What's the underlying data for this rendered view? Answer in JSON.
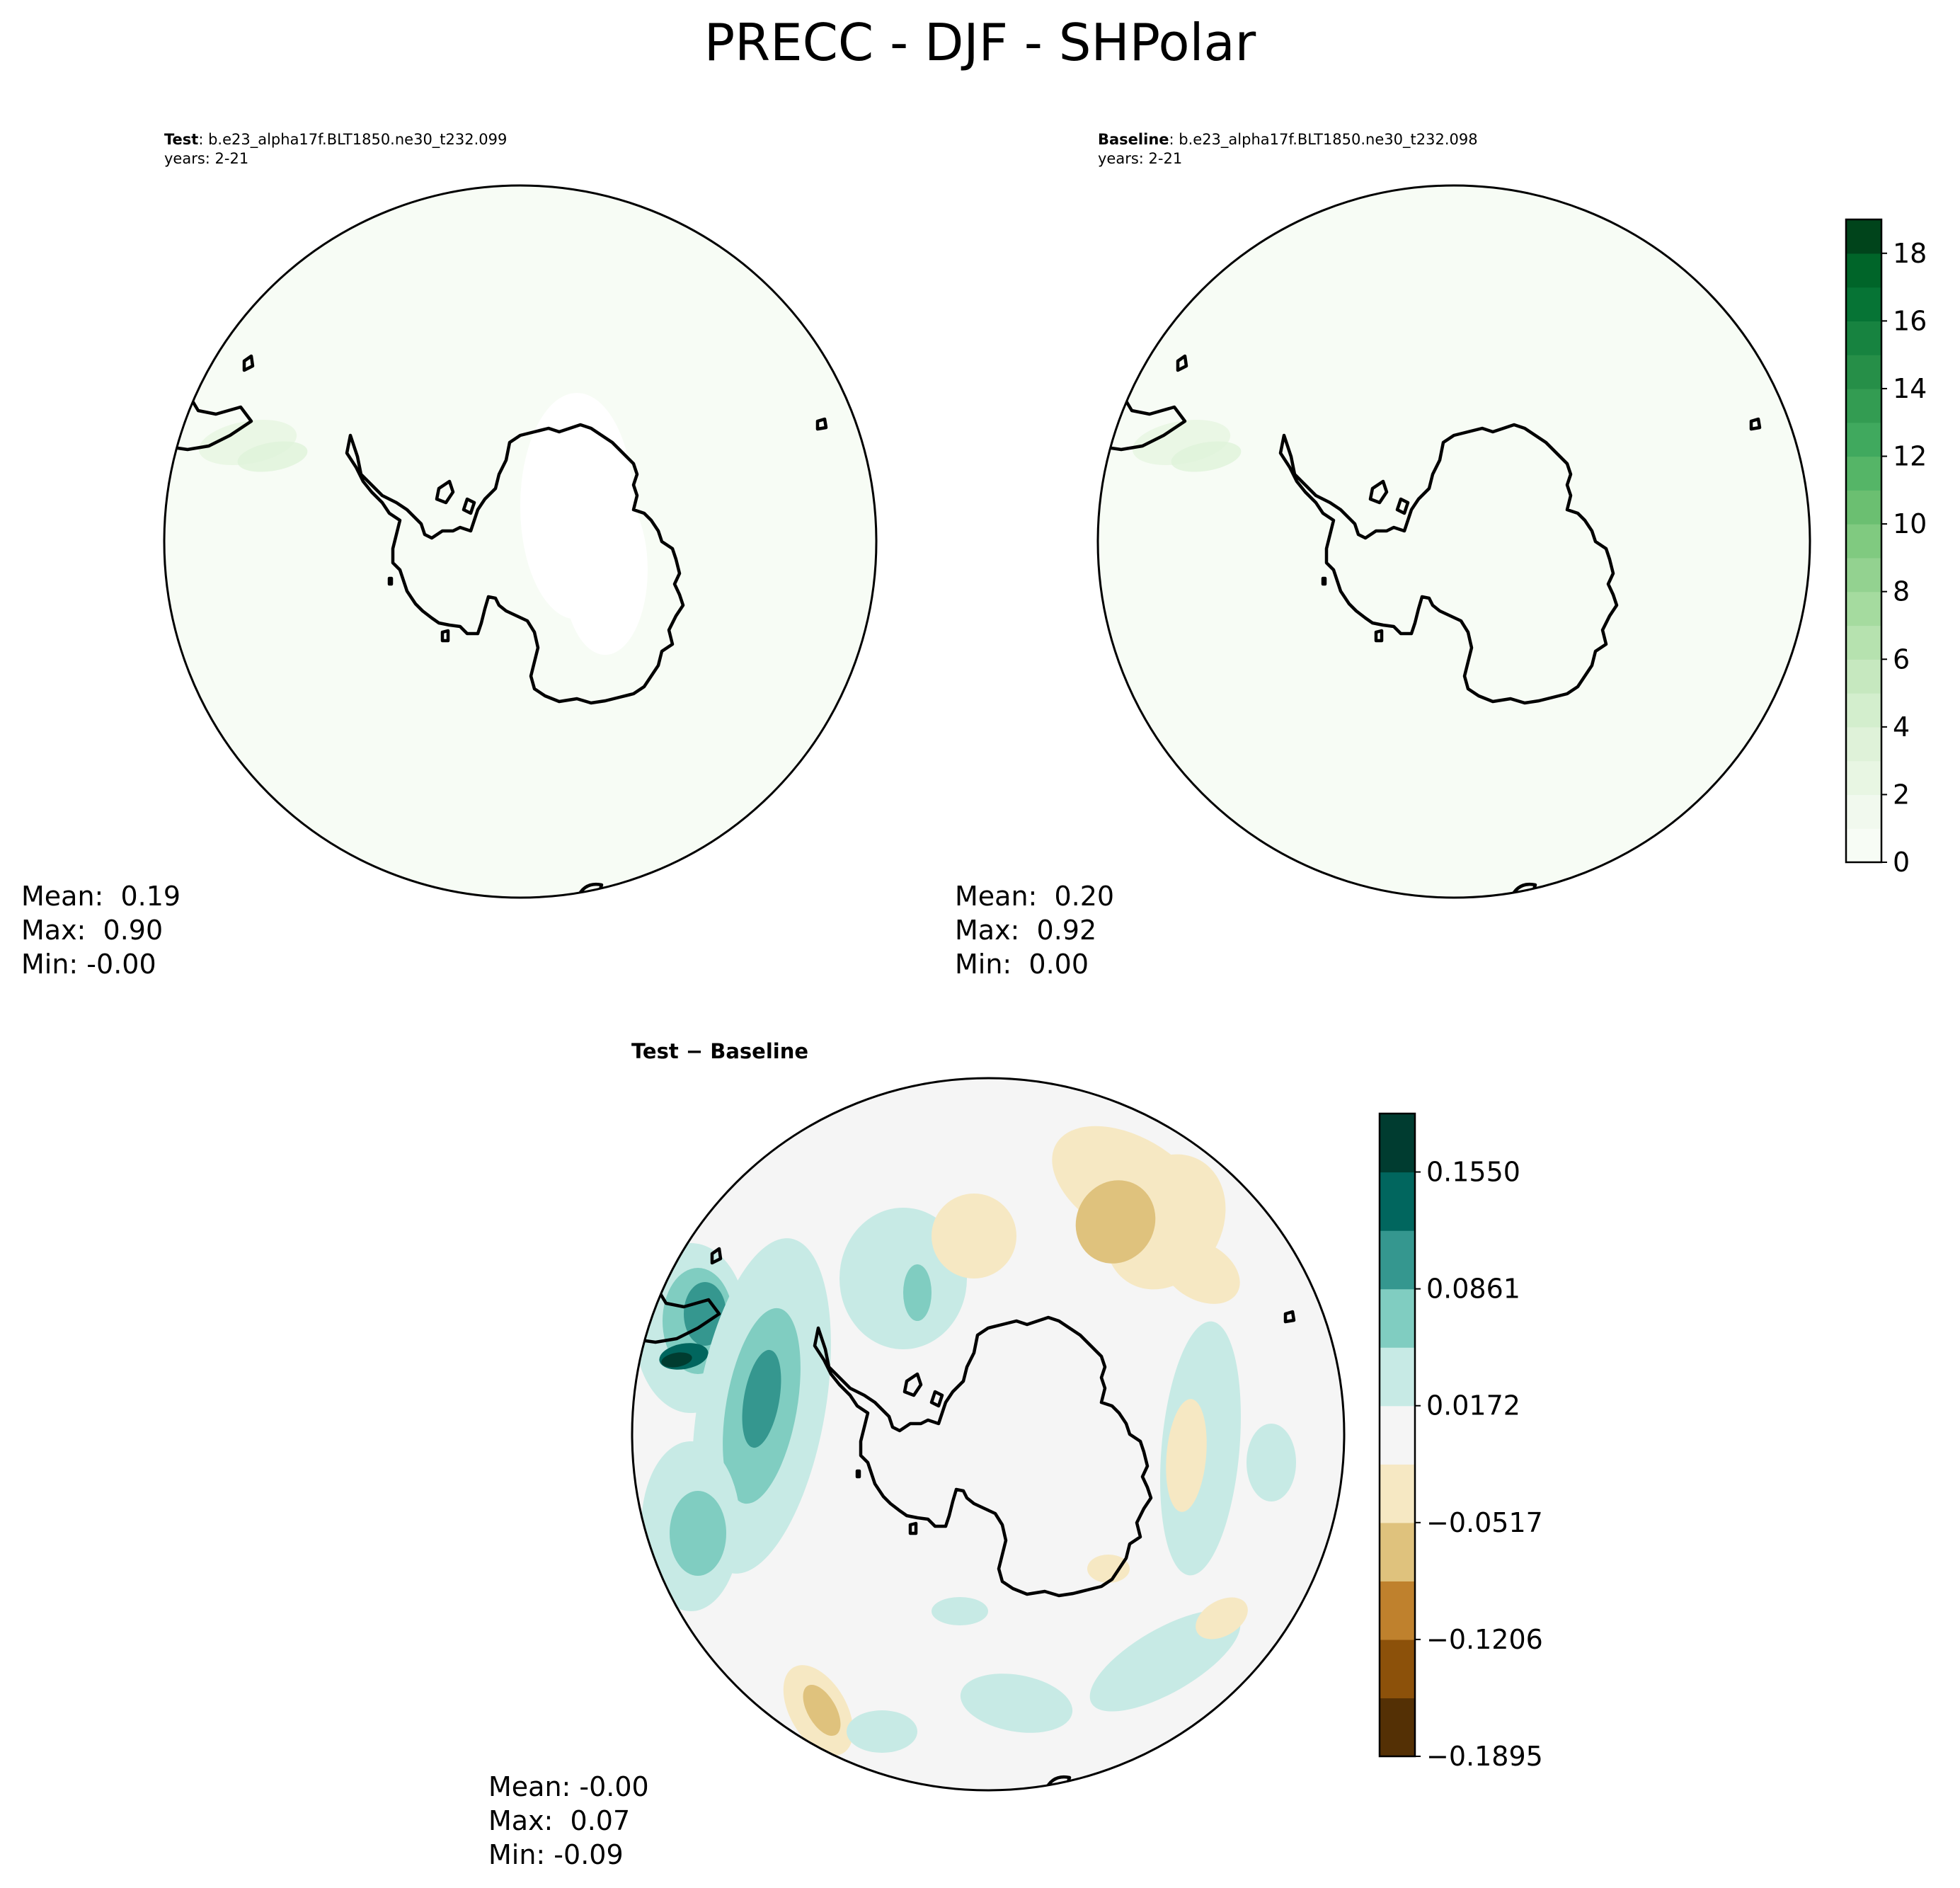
{
  "title": "PRECC - DJF - SHPolar",
  "test_panel": {
    "label_bold": "Test",
    "label_rest": ": b.e23_alpha17f.BLT1850.ne30_t232.099",
    "years": "years: 2-21",
    "stats": {
      "mean": "Mean:  0.19",
      "max": "Max:  0.90",
      "min": "Min: -0.00"
    }
  },
  "baseline_panel": {
    "label_bold": "Baseline",
    "label_rest": ": b.e23_alpha17f.BLT1850.ne30_t232.098",
    "years": "years: 2-21",
    "stats": {
      "mean": "Mean:  0.20",
      "max": "Max:  0.92",
      "min": "Min:  0.00"
    }
  },
  "diff_panel": {
    "title": "Test − Baseline",
    "stats": {
      "mean": "Mean: -0.00",
      "max": "Max:  0.07",
      "min": "Min: -0.09"
    }
  },
  "colorbar_main": {
    "ticks": [
      "0",
      "2",
      "4",
      "6",
      "8",
      "10",
      "12",
      "14",
      "16",
      "18"
    ],
    "range": [
      0,
      19
    ],
    "colors": [
      "#f7fcf5",
      "#f1f9ee",
      "#e8f6e3",
      "#dff2d9",
      "#d3eecd",
      "#c6e8bf",
      "#b6e2af",
      "#a5db9f",
      "#93d290",
      "#80ca80",
      "#6bbf71",
      "#55b567",
      "#40a95e",
      "#339c52",
      "#268f48",
      "#178340",
      "#067435",
      "#006529",
      "#00441b"
    ]
  },
  "colorbar_diff": {
    "ticks": [
      "0.1550",
      "0.0861",
      "0.0172",
      "−0.0517",
      "−0.1206",
      "−0.1895"
    ],
    "colors": [
      "#543005",
      "#8c510a",
      "#bf812d",
      "#dfc27d",
      "#f6e8c3",
      "#f5f5f5",
      "#c7eae5",
      "#80cdc1",
      "#35978f",
      "#01665e",
      "#003c30"
    ]
  }
}
